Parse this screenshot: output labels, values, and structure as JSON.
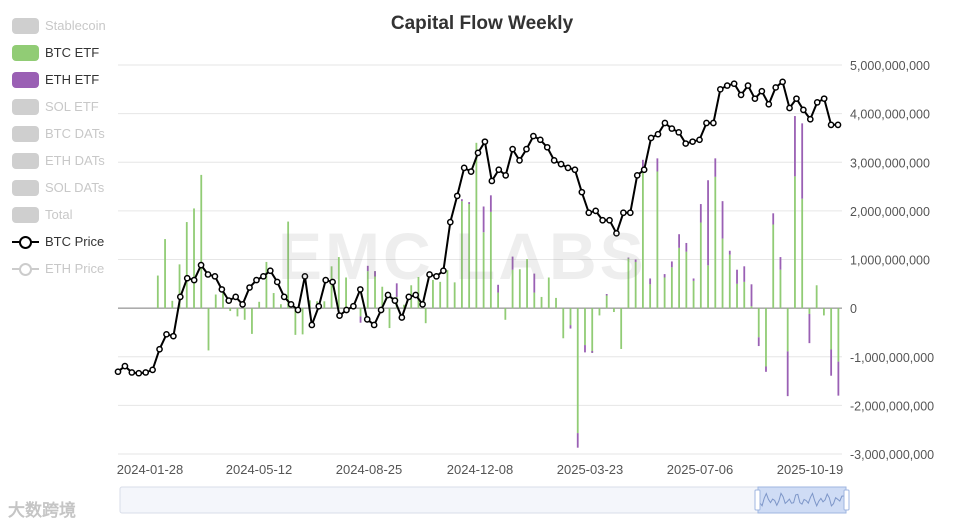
{
  "chart_data": {
    "type": "bar+line",
    "title": "Capital Flow Weekly",
    "watermark": "EMC LABS",
    "brand": "大数跨境",
    "x_tick_labels": [
      "2024-01-28",
      "2024-05-12",
      "2024-08-25",
      "2024-12-08",
      "2025-03-23",
      "2025-07-06",
      "2025-10-19"
    ],
    "y_axis": {
      "min": -3000000000,
      "max": 5000000000,
      "step": 1000000000,
      "tick_labels": [
        "-3,000,000,000",
        "-2,000,000,000",
        "-1,000,000,000",
        "0",
        "1,000,000,000",
        "2,000,000,000",
        "3,000,000,000",
        "4,000,000,000",
        "5,000,000,000"
      ]
    },
    "legend": [
      {
        "name": "Stablecoin",
        "active": false,
        "kind": "bar"
      },
      {
        "name": "BTC ETF",
        "active": true,
        "kind": "bar",
        "color": "#91cc75"
      },
      {
        "name": "ETH ETF",
        "active": true,
        "kind": "bar",
        "color": "#9a60b4"
      },
      {
        "name": "SOL ETF",
        "active": false,
        "kind": "bar"
      },
      {
        "name": "BTC DATs",
        "active": false,
        "kind": "bar"
      },
      {
        "name": "ETH DATs",
        "active": false,
        "kind": "bar"
      },
      {
        "name": "SOL DATs",
        "active": false,
        "kind": "bar"
      },
      {
        "name": "Total",
        "active": false,
        "kind": "bar"
      },
      {
        "name": "BTC Price",
        "active": true,
        "kind": "line",
        "color": "#000000"
      },
      {
        "name": "ETH Price",
        "active": false,
        "kind": "line"
      }
    ],
    "colors": {
      "btc_etf": "#91cc75",
      "eth_etf": "#9a60b4",
      "btc_price": "#000000",
      "grid": "#e6e6e6"
    },
    "series": [
      {
        "name": "BTC ETF",
        "values": [
          0,
          0,
          0,
          0,
          0,
          0.67,
          1.42,
          0.15,
          0.9,
          1.77,
          2.05,
          2.74,
          -0.87,
          0.28,
          0.38,
          -0.06,
          -0.17,
          -0.24,
          -0.53,
          0.13,
          0.95,
          0.31,
          0.08,
          1.78,
          -0.55,
          -0.54,
          0.16,
          0.14,
          0.14,
          0.86,
          1.05,
          0.63,
          0.07,
          -0.17,
          0.76,
          0.76,
          0.44,
          -0.41,
          0.23,
          0.07,
          0.47,
          0.64,
          -0.31,
          0.58,
          0.54,
          0.78,
          0.53,
          2.2,
          2.14,
          3.4,
          1.56,
          1.98,
          0.32,
          -0.24,
          0.79,
          0.8,
          1.01,
          0.32,
          0.23,
          0.63,
          0.21,
          -0.62,
          -0.35,
          -2.57,
          -0.76,
          -0.92,
          -0.15,
          0.26,
          -0.08,
          -0.84,
          1.02,
          0.95,
          2.8,
          0.49,
          2.81,
          0.63,
          0.84,
          1.24,
          1.16,
          0.56,
          1.76,
          0.88,
          2.7,
          1.43,
          1.1,
          0.5,
          0.54,
          0.04,
          -0.6,
          -1.2,
          1.72,
          0.79,
          -0.89,
          2.71,
          2.25,
          -0.12,
          0.47,
          -0.15,
          -0.85,
          -1.1
        ],
        "eth_overlay": [
          0,
          0,
          0,
          0,
          0,
          0,
          0,
          0,
          0,
          0,
          0,
          0,
          0,
          0,
          0,
          0,
          0,
          0,
          0,
          0,
          0,
          0,
          0,
          0,
          0,
          0,
          0,
          0,
          0,
          0,
          0,
          0,
          0,
          -0.13,
          0.11,
          -0.11,
          0,
          0,
          0.28,
          0,
          0,
          0,
          0,
          0,
          0,
          0,
          0,
          0.04,
          0.04,
          0,
          0.53,
          0.34,
          0.16,
          0,
          0.27,
          0,
          0,
          0.39,
          0,
          0,
          0,
          0,
          -0.07,
          -0.3,
          -0.15,
          0.04,
          0,
          0.03,
          0,
          0,
          0.02,
          0.05,
          0.25,
          0.12,
          0.27,
          0.07,
          0.12,
          0.28,
          0.18,
          0.05,
          0.38,
          1.75,
          0.38,
          0.77,
          0.08,
          0.29,
          0.32,
          0.45,
          -0.18,
          -0.11,
          0.23,
          0.26,
          -0.92,
          1.24,
          1.55,
          -0.6,
          0,
          0,
          -0.54,
          -0.7
        ]
      },
      {
        "name": "BTC Price",
        "values": [
          42000,
          43500,
          41800,
          41600,
          41800,
          42500,
          48000,
          52000,
          51500,
          62000,
          67000,
          66500,
          70500,
          68000,
          67500,
          64000,
          61000,
          62000,
          60000,
          64500,
          66500,
          67500,
          69000,
          66000,
          62000,
          60000,
          58500,
          67500,
          54500,
          59500,
          66500,
          66000,
          57000,
          58500,
          59500,
          64000,
          56000,
          54500,
          58500,
          62500,
          61000,
          56500,
          62000,
          62500,
          60000,
          68000,
          67500,
          69000,
          82000,
          89000,
          96500,
          95500,
          100500,
          103500,
          93000,
          96000,
          94500,
          101500,
          98500,
          101500,
          105000,
          104000,
          102000,
          98500,
          97500,
          96500,
          96000,
          90000,
          84500,
          85000,
          82500,
          82500,
          79000,
          84500,
          84500,
          94500,
          96000,
          104500,
          105500,
          108500,
          107000,
          106000,
          103000,
          103500,
          104000,
          108500,
          108500,
          117500,
          118500,
          119000,
          116000,
          118500,
          115000,
          117000,
          113500,
          118000,
          119500,
          112500,
          115000,
          112000,
          109500,
          114000,
          115000,
          108000,
          108000
        ]
      }
    ],
    "price_axis": {
      "min": 20000,
      "max": 124000
    }
  }
}
